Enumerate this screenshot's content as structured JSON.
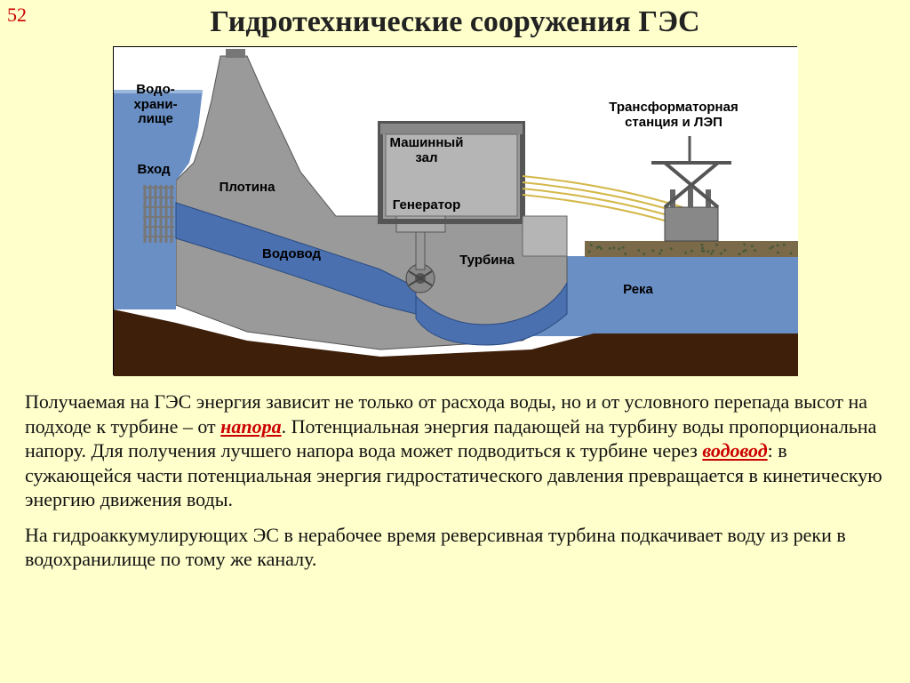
{
  "page_number": "52",
  "title": "Гидротехнические сооружения ГЭС",
  "diagram": {
    "background": "#ffffff",
    "sky": "#ffffff",
    "reservoir_water": "#6a8fc4",
    "river_water": "#6a8fc4",
    "concrete": "#9a9a9a",
    "concrete_light": "#b5b5b5",
    "ground": "#3d1f0a",
    "shore_top": "#7a6a4a",
    "penstock": "#4a70b0",
    "machine_hall_fill": "#b5b5b5",
    "machine_hall_top": "#888",
    "generator_fill": "#aaa",
    "transformer_fill": "#888",
    "wire_color": "#d4b84a",
    "intake_grill": "#777",
    "labels": {
      "reservoir": "Водо-\nхрани-\nлище",
      "inlet": "Вход",
      "dam": "Плотина",
      "penstock": "Водовод",
      "machine_hall": "Машинный\nзал",
      "generator": "Генератор",
      "turbine": "Турбина",
      "river": "Река",
      "transformer": "Трансформаторная\nстанция и ЛЭП"
    }
  },
  "paragraphs": {
    "p1a": "Получаемая на ГЭС энергия зависит не только от расхода воды, но и от условного перепада высот на подходе к турбине – от ",
    "hl1": "напора",
    "p1b": ". Потенциальная энергия падающей на турбину воды пропорциональна напору. Для получения лучшего напора вода может подводиться к турбине через ",
    "hl2": "водовод",
    "p1c": ": в сужающейся части потенциальная энергия гидростатического давления превращается в кинетическую энергию движения воды.",
    "p2": "На гидроаккумулирующих ЭС в нерабочее время реверсивная турбина подкачивает воду из реки в водохранилище по тому же каналу."
  }
}
